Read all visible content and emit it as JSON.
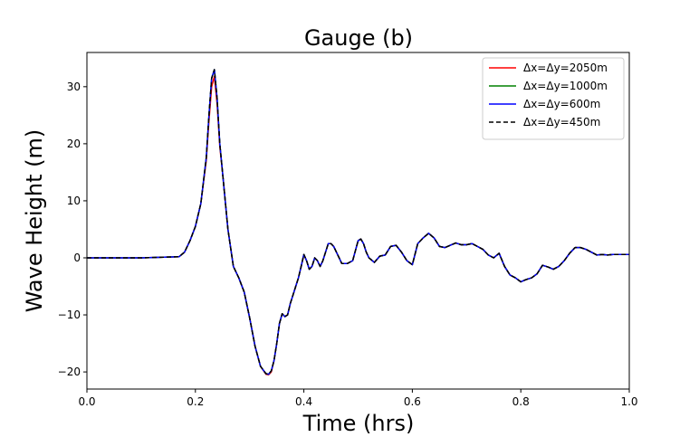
{
  "chart_data": {
    "type": "line",
    "title": "Gauge (b)",
    "xlabel": "Time (hrs)",
    "ylabel": "Wave Height (m)",
    "xlim": [
      0.0,
      1.0
    ],
    "ylim": [
      -23,
      36
    ],
    "xticks": [
      0.0,
      0.2,
      0.4,
      0.6,
      0.8,
      1.0
    ],
    "xtick_labels": [
      "0.0",
      "0.2",
      "0.4",
      "0.6",
      "0.8",
      "1.0"
    ],
    "yticks": [
      -20,
      -10,
      0,
      10,
      20,
      30
    ],
    "ytick_labels": [
      "−20",
      "−10",
      "0",
      "10",
      "20",
      "30"
    ],
    "grid": false,
    "legend_position": "top-right",
    "x": [
      0.0,
      0.1,
      0.17,
      0.18,
      0.19,
      0.2,
      0.21,
      0.22,
      0.225,
      0.23,
      0.235,
      0.24,
      0.245,
      0.25,
      0.26,
      0.27,
      0.28,
      0.29,
      0.3,
      0.31,
      0.32,
      0.33,
      0.335,
      0.34,
      0.345,
      0.35,
      0.355,
      0.36,
      0.365,
      0.37,
      0.375,
      0.38,
      0.385,
      0.39,
      0.395,
      0.4,
      0.405,
      0.41,
      0.415,
      0.42,
      0.425,
      0.43,
      0.435,
      0.44,
      0.445,
      0.45,
      0.455,
      0.46,
      0.465,
      0.47,
      0.48,
      0.49,
      0.5,
      0.505,
      0.51,
      0.515,
      0.52,
      0.53,
      0.54,
      0.55,
      0.56,
      0.57,
      0.58,
      0.59,
      0.6,
      0.61,
      0.62,
      0.63,
      0.64,
      0.65,
      0.66,
      0.67,
      0.68,
      0.69,
      0.7,
      0.71,
      0.72,
      0.73,
      0.74,
      0.75,
      0.76,
      0.77,
      0.78,
      0.79,
      0.8,
      0.81,
      0.82,
      0.83,
      0.84,
      0.85,
      0.86,
      0.87,
      0.88,
      0.89,
      0.9,
      0.91,
      0.92,
      0.93,
      0.94,
      0.95,
      0.96,
      0.97,
      0.98,
      0.99,
      1.0
    ],
    "series": [
      {
        "name": "Δx=Δy=2050m",
        "color": "#ff0000",
        "dash": "solid",
        "y": [
          0,
          0,
          0.2,
          1.0,
          3.0,
          5.5,
          9.5,
          17.0,
          24.0,
          30.0,
          31.8,
          27.0,
          19.5,
          15.0,
          5.0,
          -1.5,
          -3.5,
          -6.0,
          -10.5,
          -15.5,
          -19.0,
          -20.4,
          -20.5,
          -20.0,
          -18.0,
          -15.0,
          -11.5,
          -9.8,
          -10.3,
          -10.0,
          -8.0,
          -6.5,
          -5.0,
          -3.5,
          -1.5,
          0.5,
          -0.5,
          -2.0,
          -1.5,
          0.0,
          -0.5,
          -1.5,
          -0.5,
          1.0,
          2.5,
          2.5,
          2.0,
          1.0,
          0.0,
          -1.0,
          -1.0,
          -0.5,
          3.0,
          3.3,
          2.5,
          1.0,
          0.0,
          -0.8,
          0.3,
          0.5,
          2.0,
          2.2,
          1.0,
          -0.5,
          -1.2,
          2.5,
          3.5,
          4.3,
          3.5,
          2.0,
          1.8,
          2.2,
          2.6,
          2.3,
          2.3,
          2.5,
          2.0,
          1.5,
          0.5,
          0.0,
          0.8,
          -1.5,
          -3.0,
          -3.5,
          -4.2,
          -3.8,
          -3.5,
          -2.8,
          -1.3,
          -1.6,
          -2.0,
          -1.5,
          -0.5,
          0.8,
          1.8,
          1.8,
          1.5,
          1.0,
          0.5,
          0.6,
          0.5,
          0.6,
          0.6,
          0.6,
          0.6
        ]
      },
      {
        "name": "Δx=Δy=1000m",
        "color": "#008000",
        "dash": "solid",
        "y": [
          0,
          0,
          0.2,
          1.0,
          3.0,
          5.5,
          9.5,
          17.5,
          25.0,
          31.5,
          33.0,
          28.0,
          20.0,
          15.0,
          5.0,
          -1.5,
          -3.5,
          -6.0,
          -10.5,
          -15.5,
          -19.0,
          -20.3,
          -20.4,
          -19.8,
          -18.0,
          -15.0,
          -11.5,
          -9.8,
          -10.3,
          -10.0,
          -8.0,
          -6.5,
          -5.0,
          -3.5,
          -1.5,
          0.6,
          -0.5,
          -2.0,
          -1.5,
          0.0,
          -0.5,
          -1.5,
          -0.5,
          1.0,
          2.5,
          2.5,
          2.0,
          1.0,
          0.0,
          -1.0,
          -1.0,
          -0.5,
          3.0,
          3.3,
          2.5,
          1.0,
          0.0,
          -0.8,
          0.3,
          0.5,
          2.0,
          2.2,
          1.0,
          -0.5,
          -1.2,
          2.5,
          3.5,
          4.3,
          3.5,
          2.0,
          1.8,
          2.2,
          2.6,
          2.3,
          2.3,
          2.5,
          2.0,
          1.5,
          0.5,
          0.0,
          0.8,
          -1.5,
          -3.0,
          -3.5,
          -4.2,
          -3.8,
          -3.5,
          -2.8,
          -1.3,
          -1.6,
          -2.0,
          -1.5,
          -0.5,
          0.8,
          1.8,
          1.8,
          1.5,
          1.0,
          0.5,
          0.6,
          0.5,
          0.6,
          0.6,
          0.6,
          0.6
        ]
      },
      {
        "name": "Δx=Δy=600m",
        "color": "#0000ff",
        "dash": "solid",
        "y": [
          0,
          0,
          0.2,
          1.0,
          3.0,
          5.5,
          9.5,
          17.5,
          25.0,
          31.5,
          33.0,
          28.0,
          20.0,
          15.0,
          5.0,
          -1.5,
          -3.5,
          -6.0,
          -10.5,
          -15.5,
          -19.0,
          -20.3,
          -20.4,
          -19.8,
          -18.0,
          -15.0,
          -11.5,
          -9.8,
          -10.3,
          -10.0,
          -8.0,
          -6.5,
          -5.0,
          -3.5,
          -1.5,
          0.6,
          -0.5,
          -2.0,
          -1.5,
          0.0,
          -0.5,
          -1.5,
          -0.5,
          1.0,
          2.5,
          2.5,
          2.0,
          1.0,
          0.0,
          -1.0,
          -1.0,
          -0.5,
          3.0,
          3.3,
          2.5,
          1.0,
          0.0,
          -0.8,
          0.3,
          0.5,
          2.0,
          2.2,
          1.0,
          -0.5,
          -1.2,
          2.5,
          3.5,
          4.3,
          3.5,
          2.0,
          1.8,
          2.2,
          2.6,
          2.3,
          2.3,
          2.5,
          2.0,
          1.5,
          0.5,
          0.0,
          0.8,
          -1.5,
          -3.0,
          -3.5,
          -4.2,
          -3.8,
          -3.5,
          -2.8,
          -1.3,
          -1.6,
          -2.0,
          -1.5,
          -0.5,
          0.8,
          1.8,
          1.8,
          1.5,
          1.0,
          0.5,
          0.6,
          0.5,
          0.6,
          0.6,
          0.6,
          0.6
        ]
      },
      {
        "name": "Δx=Δy=450m",
        "color": "#000000",
        "dash": "dashed",
        "y": [
          0,
          0,
          0.2,
          1.0,
          3.0,
          5.5,
          9.5,
          17.5,
          25.0,
          31.5,
          33.0,
          28.0,
          20.0,
          15.0,
          5.0,
          -1.5,
          -3.5,
          -6.0,
          -10.5,
          -15.5,
          -19.0,
          -20.3,
          -20.4,
          -19.8,
          -18.0,
          -15.0,
          -11.5,
          -9.8,
          -10.3,
          -10.0,
          -8.0,
          -6.5,
          -5.0,
          -3.5,
          -1.5,
          0.6,
          -0.5,
          -2.0,
          -1.5,
          0.0,
          -0.5,
          -1.5,
          -0.5,
          1.0,
          2.5,
          2.5,
          2.0,
          1.0,
          0.0,
          -1.0,
          -1.0,
          -0.5,
          3.0,
          3.3,
          2.5,
          1.0,
          0.0,
          -0.8,
          0.3,
          0.5,
          2.0,
          2.2,
          1.0,
          -0.5,
          -1.2,
          2.5,
          3.5,
          4.3,
          3.5,
          2.0,
          1.8,
          2.2,
          2.6,
          2.3,
          2.3,
          2.5,
          2.0,
          1.5,
          0.5,
          0.0,
          0.8,
          -1.5,
          -3.0,
          -3.5,
          -4.2,
          -3.8,
          -3.5,
          -2.8,
          -1.3,
          -1.6,
          -2.0,
          -1.5,
          -0.5,
          0.8,
          1.8,
          1.8,
          1.5,
          1.0,
          0.5,
          0.6,
          0.5,
          0.6,
          0.6,
          0.6,
          0.6
        ]
      }
    ]
  }
}
